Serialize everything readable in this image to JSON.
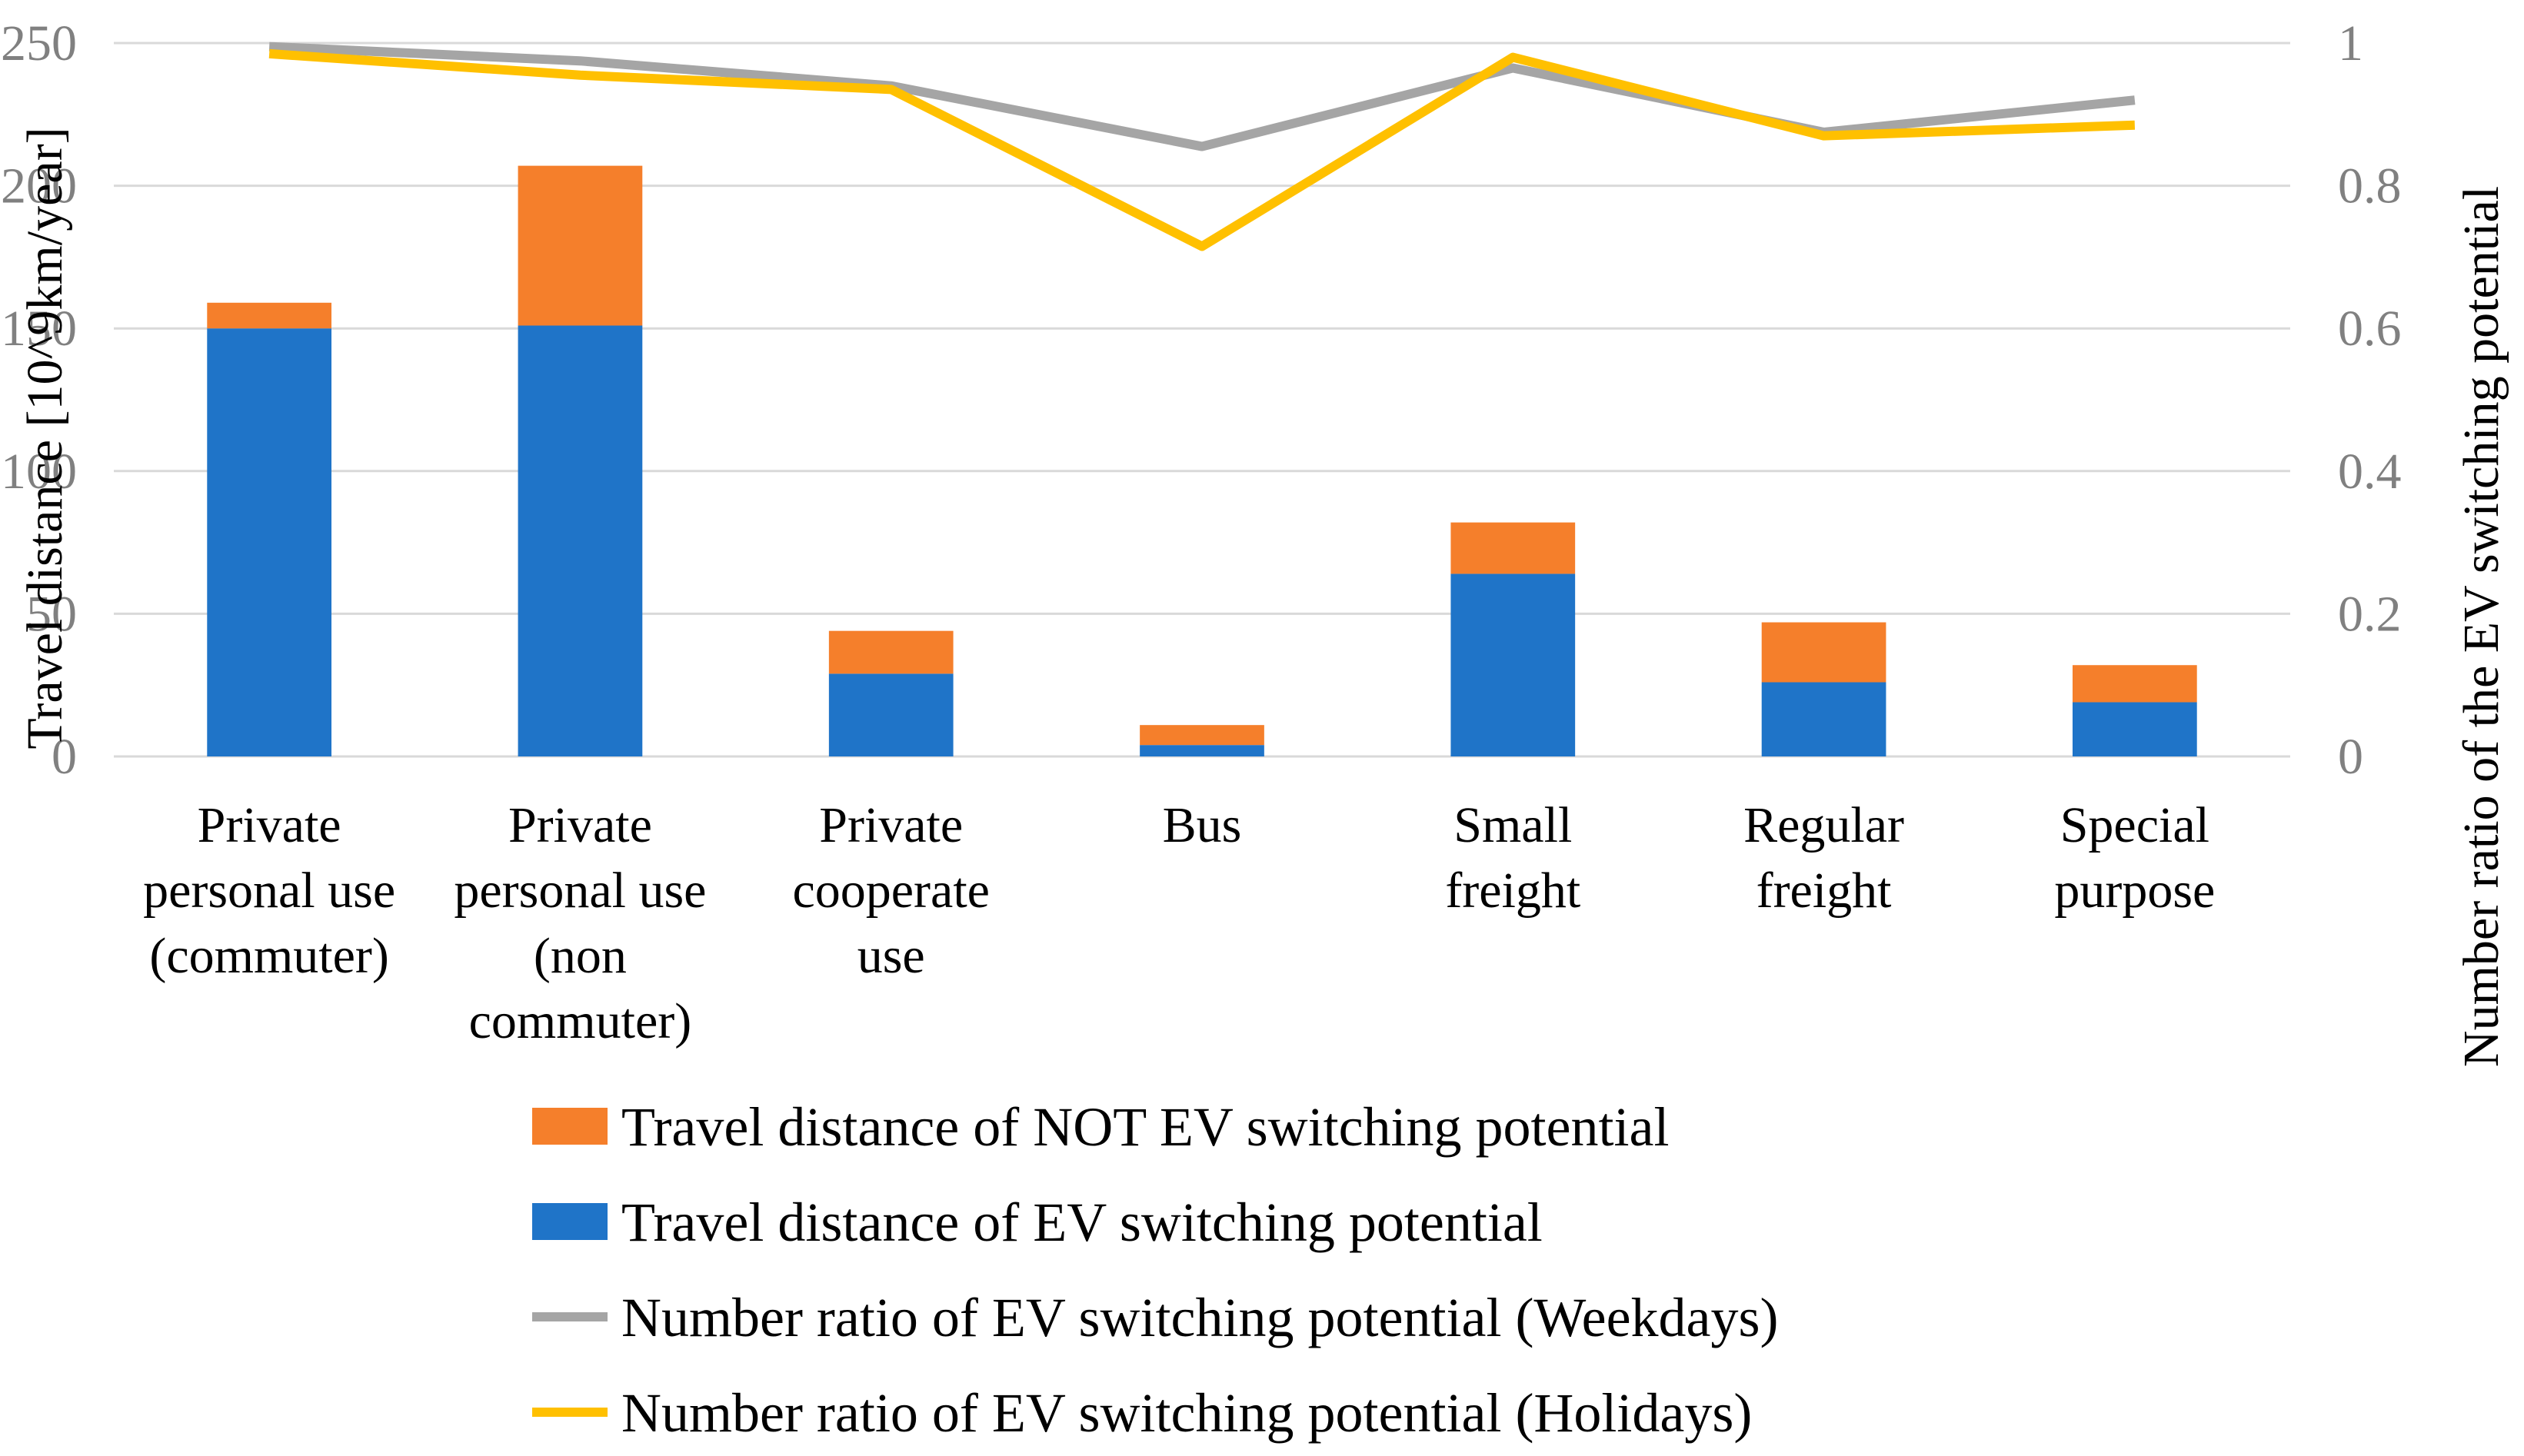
{
  "chart_data": {
    "type": "bar",
    "stacked": true,
    "categories": [
      [
        "Private",
        "personal use",
        "(commuter)"
      ],
      [
        "Private",
        "personal use",
        "(non",
        "commuter)"
      ],
      [
        "Private",
        "cooperate",
        "use"
      ],
      [
        "Bus"
      ],
      [
        "Small",
        "freight"
      ],
      [
        "Regular",
        "freight"
      ],
      [
        "Special",
        "purpose"
      ]
    ],
    "series": [
      {
        "name": "Travel distance of EV switching potential",
        "kind": "bar",
        "axis": "left",
        "color": "#1f74c8",
        "values": [
          150,
          151,
          29,
          4,
          64,
          26,
          19
        ]
      },
      {
        "name": "Travel distance of NOT EV switching potential",
        "kind": "bar",
        "axis": "left",
        "color": "#f57f2b",
        "values": [
          9,
          56,
          15,
          7,
          18,
          21,
          13
        ]
      },
      {
        "name": "Number ratio of EV switching potential (Weekdays)",
        "kind": "line",
        "axis": "right",
        "color": "#a5a5a5",
        "values": [
          0.995,
          0.975,
          0.94,
          0.855,
          0.965,
          0.875,
          0.92
        ]
      },
      {
        "name": "Number ratio of EV switching potential (Holidays)",
        "kind": "line",
        "axis": "right",
        "color": "#ffc000",
        "values": [
          0.985,
          0.955,
          0.935,
          0.715,
          0.98,
          0.87,
          0.885
        ]
      }
    ],
    "legend_order": [
      1,
      0,
      2,
      3
    ],
    "ylabel": "Travel  distance  [10^9km/year]",
    "ylabel_right": "Number ratio of  the EV switching potential",
    "ylim": [
      0,
      250
    ],
    "yticks": [
      "0",
      "50",
      "100",
      "150",
      "200",
      "250"
    ],
    "ylim_right": [
      0,
      1
    ],
    "yticks_right": [
      "0",
      "0.2",
      "0.4",
      "0.6",
      "0.8",
      "1"
    ],
    "grid": true,
    "legend_position": "bottom"
  }
}
